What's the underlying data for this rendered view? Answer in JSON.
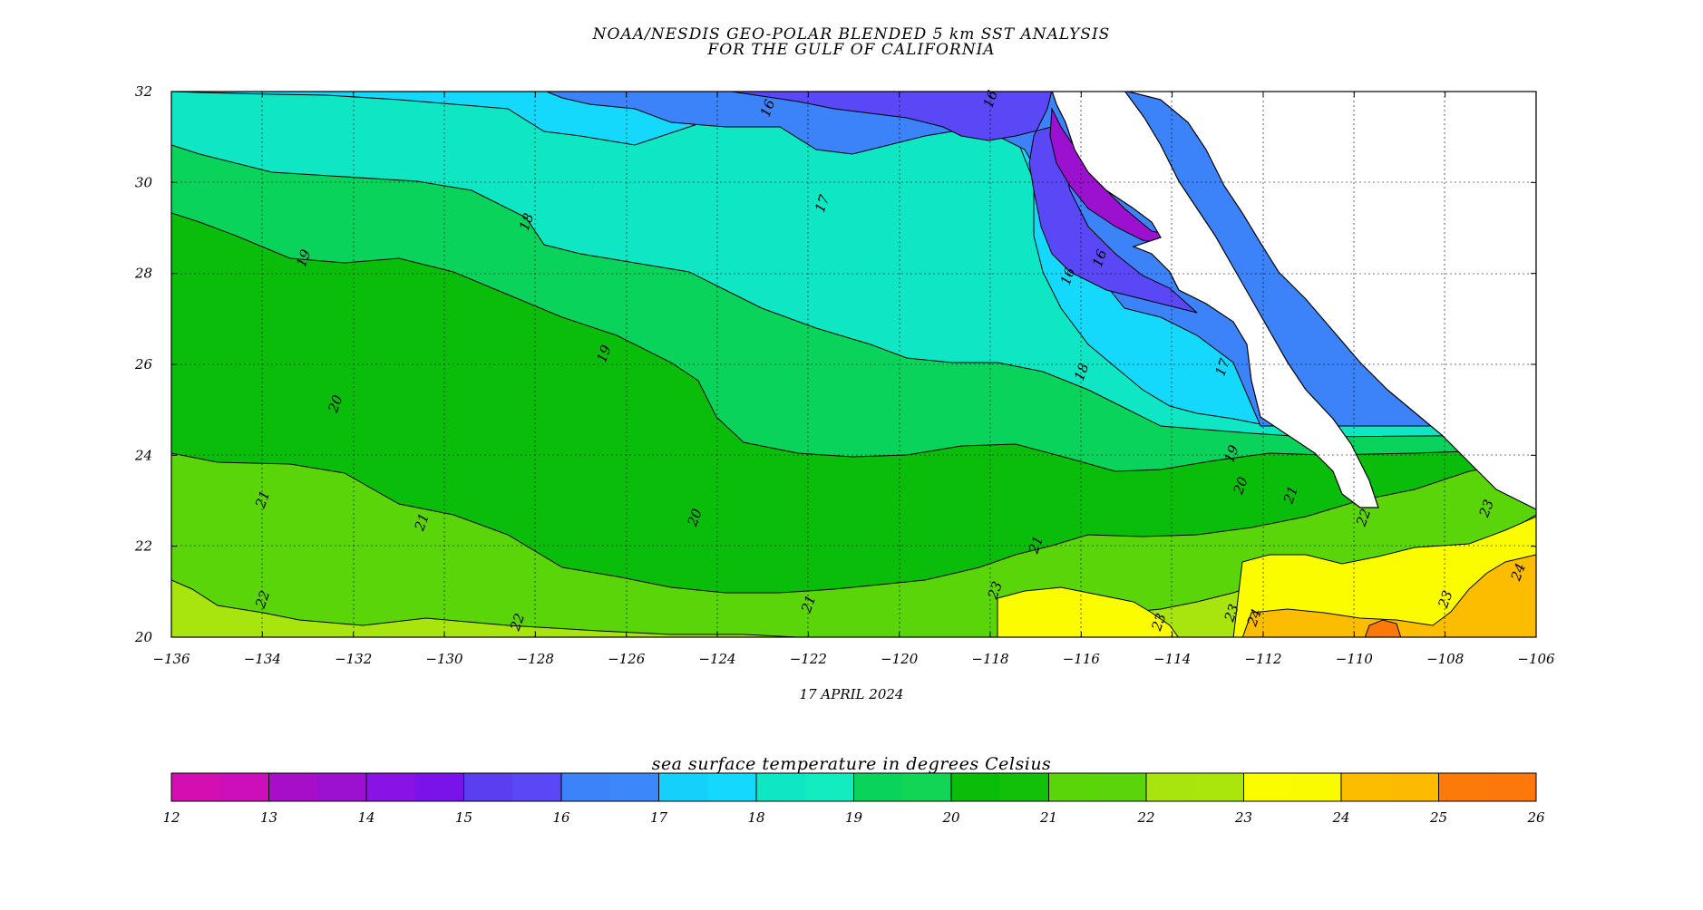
{
  "title": {
    "line1": "NOAA/NESDIS GEO-POLAR BLENDED 5 km SST ANALYSIS",
    "line2": "FOR THE GULF OF CALIFORNIA"
  },
  "date": "17 APRIL 2024",
  "colorbar_title": "sea surface temperature in degrees Celsius",
  "colorbar": {
    "ticks": [
      "12",
      "13",
      "14",
      "15",
      "16",
      "17",
      "18",
      "19",
      "20",
      "21",
      "22",
      "23",
      "24",
      "25",
      "26"
    ],
    "colors": [
      "#d40fb2",
      "#cc0fbb",
      "#a70ec8",
      "#9c10d0",
      "#8912e4",
      "#7a12ea",
      "#5a3ef0",
      "#5a48f6",
      "#3c82f8",
      "#3c88fa",
      "#14d0fa",
      "#14d8fc",
      "#0fe6c4",
      "#12ecbe",
      "#0ad35c",
      "#12d556",
      "#0abd0a",
      "#12c00a",
      "#5ad50a",
      "#5cd40c",
      "#a8e40e",
      "#aae60c",
      "#fcfc00",
      "#fafa00",
      "#fcbc00",
      "#fcba00",
      "#fc7a0a",
      "#fc780a"
    ]
  },
  "chart_data": {
    "type": "heatmap",
    "title": "NOAA/NESDIS GEO-POLAR BLENDED 5 km SST ANALYSIS FOR THE GULF OF CALIFORNIA",
    "x_axis": {
      "range": [
        -136,
        -106
      ],
      "ticks": [
        "−136",
        "−134",
        "−132",
        "−130",
        "−128",
        "−126",
        "−124",
        "−122",
        "−120",
        "−118",
        "−116",
        "−114",
        "−112",
        "−110",
        "−108",
        "−106"
      ]
    },
    "y_axis": {
      "range": [
        20,
        32
      ],
      "ticks": [
        "20",
        "22",
        "24",
        "26",
        "28",
        "30",
        "32"
      ]
    },
    "grid": true,
    "colorscale_range": [
      12,
      26
    ],
    "contour_labels": [
      {
        "text": "16",
        "lon": -122.8,
        "lat": 31.6
      },
      {
        "text": "16",
        "lon": -117.9,
        "lat": 31.8
      },
      {
        "text": "16",
        "lon": -116.2,
        "lat": 27.9
      },
      {
        "text": "16",
        "lon": -115.5,
        "lat": 28.3
      },
      {
        "text": "17",
        "lon": -121.6,
        "lat": 29.5
      },
      {
        "text": "17",
        "lon": -112.8,
        "lat": 25.9
      },
      {
        "text": "18",
        "lon": -128.1,
        "lat": 29.1
      },
      {
        "text": "18",
        "lon": -115.9,
        "lat": 25.8
      },
      {
        "text": "19",
        "lon": -133.0,
        "lat": 28.3
      },
      {
        "text": "19",
        "lon": -126.4,
        "lat": 26.2
      },
      {
        "text": "19",
        "lon": -112.6,
        "lat": 24.0
      },
      {
        "text": "20",
        "lon": -132.3,
        "lat": 25.1
      },
      {
        "text": "20",
        "lon": -124.4,
        "lat": 22.6
      },
      {
        "text": "20",
        "lon": -112.4,
        "lat": 23.3
      },
      {
        "text": "21",
        "lon": -133.9,
        "lat": 23.0
      },
      {
        "text": "21",
        "lon": -130.4,
        "lat": 22.5
      },
      {
        "text": "21",
        "lon": -121.9,
        "lat": 20.7
      },
      {
        "text": "21",
        "lon": -116.9,
        "lat": 22.0
      },
      {
        "text": "21",
        "lon": -111.3,
        "lat": 23.1
      },
      {
        "text": "22",
        "lon": -133.9,
        "lat": 20.8
      },
      {
        "text": "22",
        "lon": -128.3,
        "lat": 20.3
      },
      {
        "text": "22",
        "lon": -109.7,
        "lat": 22.6
      },
      {
        "text": "23",
        "lon": -117.8,
        "lat": 21.0
      },
      {
        "text": "23",
        "lon": -114.2,
        "lat": 20.3
      },
      {
        "text": "23",
        "lon": -112.6,
        "lat": 20.5
      },
      {
        "text": "23",
        "lon": -107.0,
        "lat": 22.8
      },
      {
        "text": "23",
        "lon": -107.9,
        "lat": 20.8
      },
      {
        "text": "24",
        "lon": -112.1,
        "lat": 20.4
      },
      {
        "text": "24",
        "lon": -106.3,
        "lat": 21.4
      }
    ]
  }
}
